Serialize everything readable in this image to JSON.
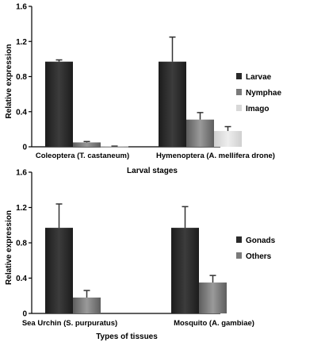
{
  "chart_data": [
    {
      "type": "bar",
      "categories": [
        "Coleoptera (T. castaneum)",
        "Hymenoptera (A. mellifera drone)"
      ],
      "series": [
        {
          "name": "Larvae",
          "values": [
            0.97,
            0.97
          ],
          "errors": [
            0.02,
            0.28
          ],
          "color": "#2a2a2a"
        },
        {
          "name": "Nymphae",
          "values": [
            0.05,
            0.31
          ],
          "errors": [
            0.01,
            0.08
          ],
          "color": "#7a7a7a"
        },
        {
          "name": "Imago",
          "values": [
            0.005,
            0.18
          ],
          "errors": [
            0.003,
            0.05
          ],
          "color": "#d8d8d8"
        }
      ],
      "xlabel": "Larval stages",
      "ylabel": "Relative expression",
      "ylim": [
        0,
        1.6
      ],
      "yticks": [
        "0",
        "0.4",
        "0.8",
        "1.2",
        "1.6"
      ],
      "legend": "right"
    },
    {
      "type": "bar",
      "categories": [
        "Sea Urchin (S. purpuratus)",
        "Mosquito (A. gambiae)"
      ],
      "series": [
        {
          "name": "Gonads",
          "values": [
            0.97,
            0.97
          ],
          "errors": [
            0.27,
            0.24
          ],
          "color": "#2a2a2a"
        },
        {
          "name": "Others",
          "values": [
            0.18,
            0.35
          ],
          "errors": [
            0.08,
            0.08
          ],
          "color": "#7a7a7a"
        }
      ],
      "xlabel": "Types of tissues",
      "ylabel": "Relative expression",
      "ylim": [
        0,
        1.6
      ],
      "yticks": [
        "0",
        "0.4",
        "0.8",
        "1.2",
        "1.6"
      ],
      "legend": "right"
    }
  ]
}
